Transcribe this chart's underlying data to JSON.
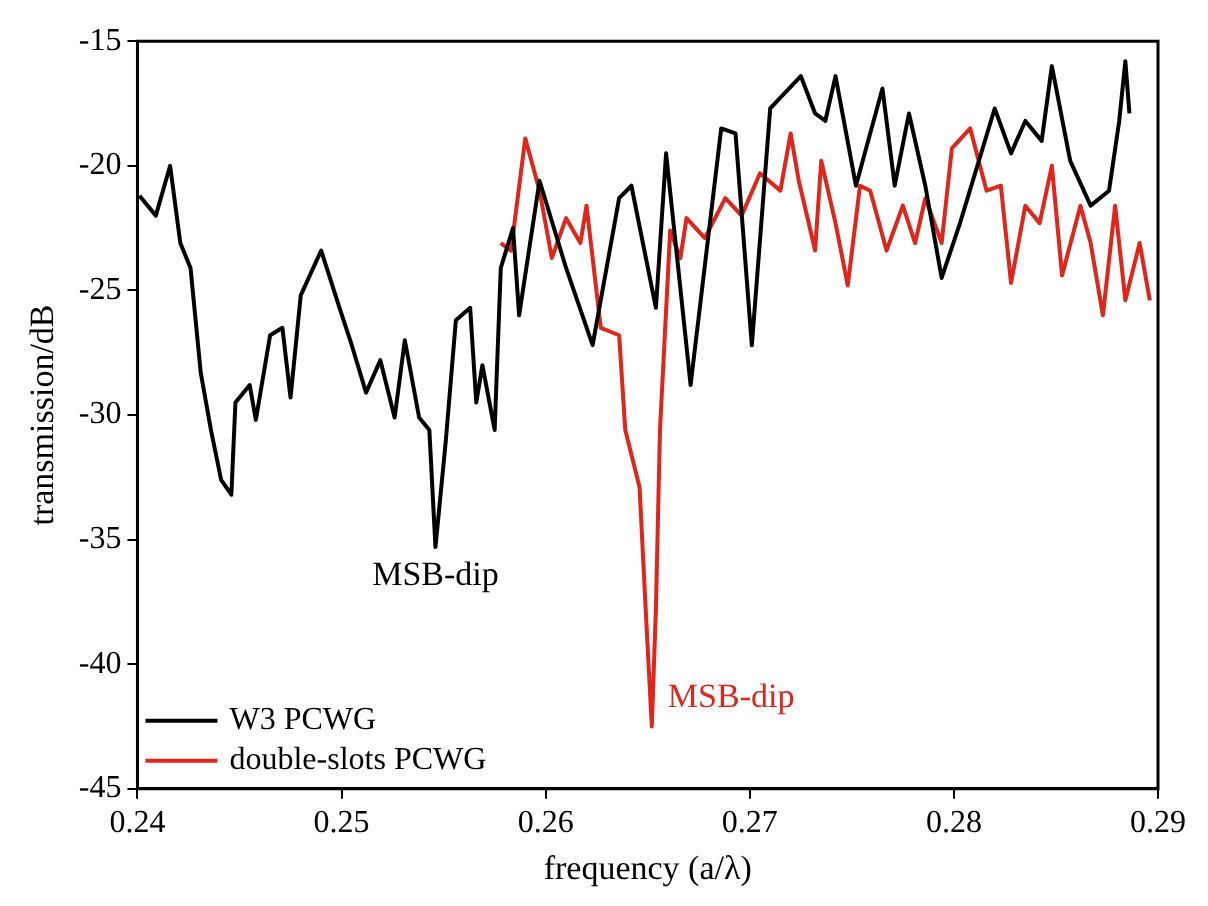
{
  "chart_data": {
    "type": "line",
    "xlabel": "frequency (a/λ)",
    "ylabel": "transmission/dB",
    "xlim": [
      0.24,
      0.29
    ],
    "xticks": [
      0.24,
      0.25,
      0.26,
      0.27,
      0.28,
      0.29
    ],
    "ylim": [
      -45,
      -15
    ],
    "yticks": [
      -45,
      -40,
      -35,
      -30,
      -25,
      -20,
      -15
    ],
    "grid": false,
    "legend": "bottom left",
    "marker": "none",
    "line_style": "solid",
    "series": [
      {
        "name": "W3 PCWG",
        "color": "#000000",
        "x": [
          0.2401,
          0.2404,
          0.2409,
          0.2416,
          0.2421,
          0.2426,
          0.2431,
          0.2436,
          0.2441,
          0.2446,
          0.2448,
          0.2455,
          0.2458,
          0.2465,
          0.2471,
          0.2475,
          0.248,
          0.249,
          0.2499,
          0.2505,
          0.2512,
          0.2519,
          0.2526,
          0.2531,
          0.2538,
          0.2543,
          0.2546,
          0.2551,
          0.2556,
          0.2563,
          0.2566,
          0.2569,
          0.2575,
          0.2578,
          0.2584,
          0.2587,
          0.2597,
          0.261,
          0.2623,
          0.2636,
          0.2642,
          0.2654,
          0.2659,
          0.2671,
          0.2686,
          0.2693,
          0.2701,
          0.271,
          0.2725,
          0.2732,
          0.2737,
          0.2742,
          0.2752,
          0.2765,
          0.2771,
          0.2778,
          0.2786,
          0.2794,
          0.2803,
          0.282,
          0.2828,
          0.2835,
          0.2843,
          0.2848,
          0.2857,
          0.2867,
          0.2876,
          0.2881,
          0.2884,
          0.2886
        ],
        "values": [
          -21.2,
          -21.5,
          -22.0,
          -20.0,
          -23.1,
          -24.1,
          -28.3,
          -30.6,
          -32.6,
          -33.2,
          -29.5,
          -28.8,
          -30.2,
          -26.8,
          -26.5,
          -29.3,
          -25.2,
          -23.4,
          -25.7,
          -27.2,
          -29.1,
          -27.8,
          -30.1,
          -27.0,
          -30.1,
          -30.6,
          -35.3,
          -31.1,
          -26.2,
          -25.7,
          -29.5,
          -28.0,
          -30.6,
          -24.1,
          -22.5,
          -26.0,
          -20.6,
          -24.1,
          -27.2,
          -21.3,
          -20.8,
          -25.7,
          -19.5,
          -28.8,
          -18.5,
          -18.7,
          -27.2,
          -17.7,
          -16.4,
          -17.9,
          -18.2,
          -16.4,
          -20.8,
          -16.9,
          -20.8,
          -17.9,
          -20.8,
          -24.5,
          -22.3,
          -17.7,
          -19.5,
          -18.2,
          -19.0,
          -16.0,
          -19.8,
          -21.6,
          -21.0,
          -18.2,
          -15.8,
          -17.9
        ]
      },
      {
        "name": "double-slots PCWG",
        "color": "#e0251b",
        "x": [
          0.2578,
          0.2583,
          0.259,
          0.2597,
          0.2603,
          0.261,
          0.2617,
          0.262,
          0.2627,
          0.2636,
          0.2639,
          0.2646,
          0.2649,
          0.2652,
          0.2654,
          0.2656,
          0.2661,
          0.2666,
          0.2669,
          0.2678,
          0.2688,
          0.2696,
          0.2705,
          0.2715,
          0.272,
          0.2724,
          0.2732,
          0.2735,
          0.2742,
          0.2748,
          0.2754,
          0.2759,
          0.2767,
          0.2775,
          0.2781,
          0.2786,
          0.2794,
          0.2799,
          0.2808,
          0.2816,
          0.2823,
          0.2828,
          0.2835,
          0.2842,
          0.2848,
          0.2853,
          0.2862,
          0.2867,
          0.2873,
          0.2879,
          0.2884,
          0.2891,
          0.2896
        ],
        "values": [
          -23.1,
          -23.4,
          -18.9,
          -21.0,
          -23.7,
          -22.1,
          -23.1,
          -21.6,
          -26.5,
          -26.8,
          -30.6,
          -32.9,
          -37.8,
          -42.5,
          -37.8,
          -30.6,
          -22.6,
          -23.7,
          -22.1,
          -22.9,
          -21.3,
          -22.0,
          -20.3,
          -21.0,
          -18.7,
          -20.6,
          -23.4,
          -19.8,
          -22.3,
          -24.8,
          -20.8,
          -21.0,
          -23.4,
          -21.6,
          -23.1,
          -21.3,
          -23.1,
          -19.3,
          -18.5,
          -21.0,
          -20.8,
          -24.7,
          -21.6,
          -22.3,
          -20.0,
          -24.4,
          -21.6,
          -23.1,
          -26.0,
          -21.6,
          -25.4,
          -23.1,
          -25.4
        ]
      }
    ],
    "annotations": [
      {
        "text": "MSB-dip",
        "x": 0.2546,
        "y": -35.3
      },
      {
        "text": "MSB-dip",
        "x": 0.2652,
        "y": -42.5
      }
    ]
  }
}
